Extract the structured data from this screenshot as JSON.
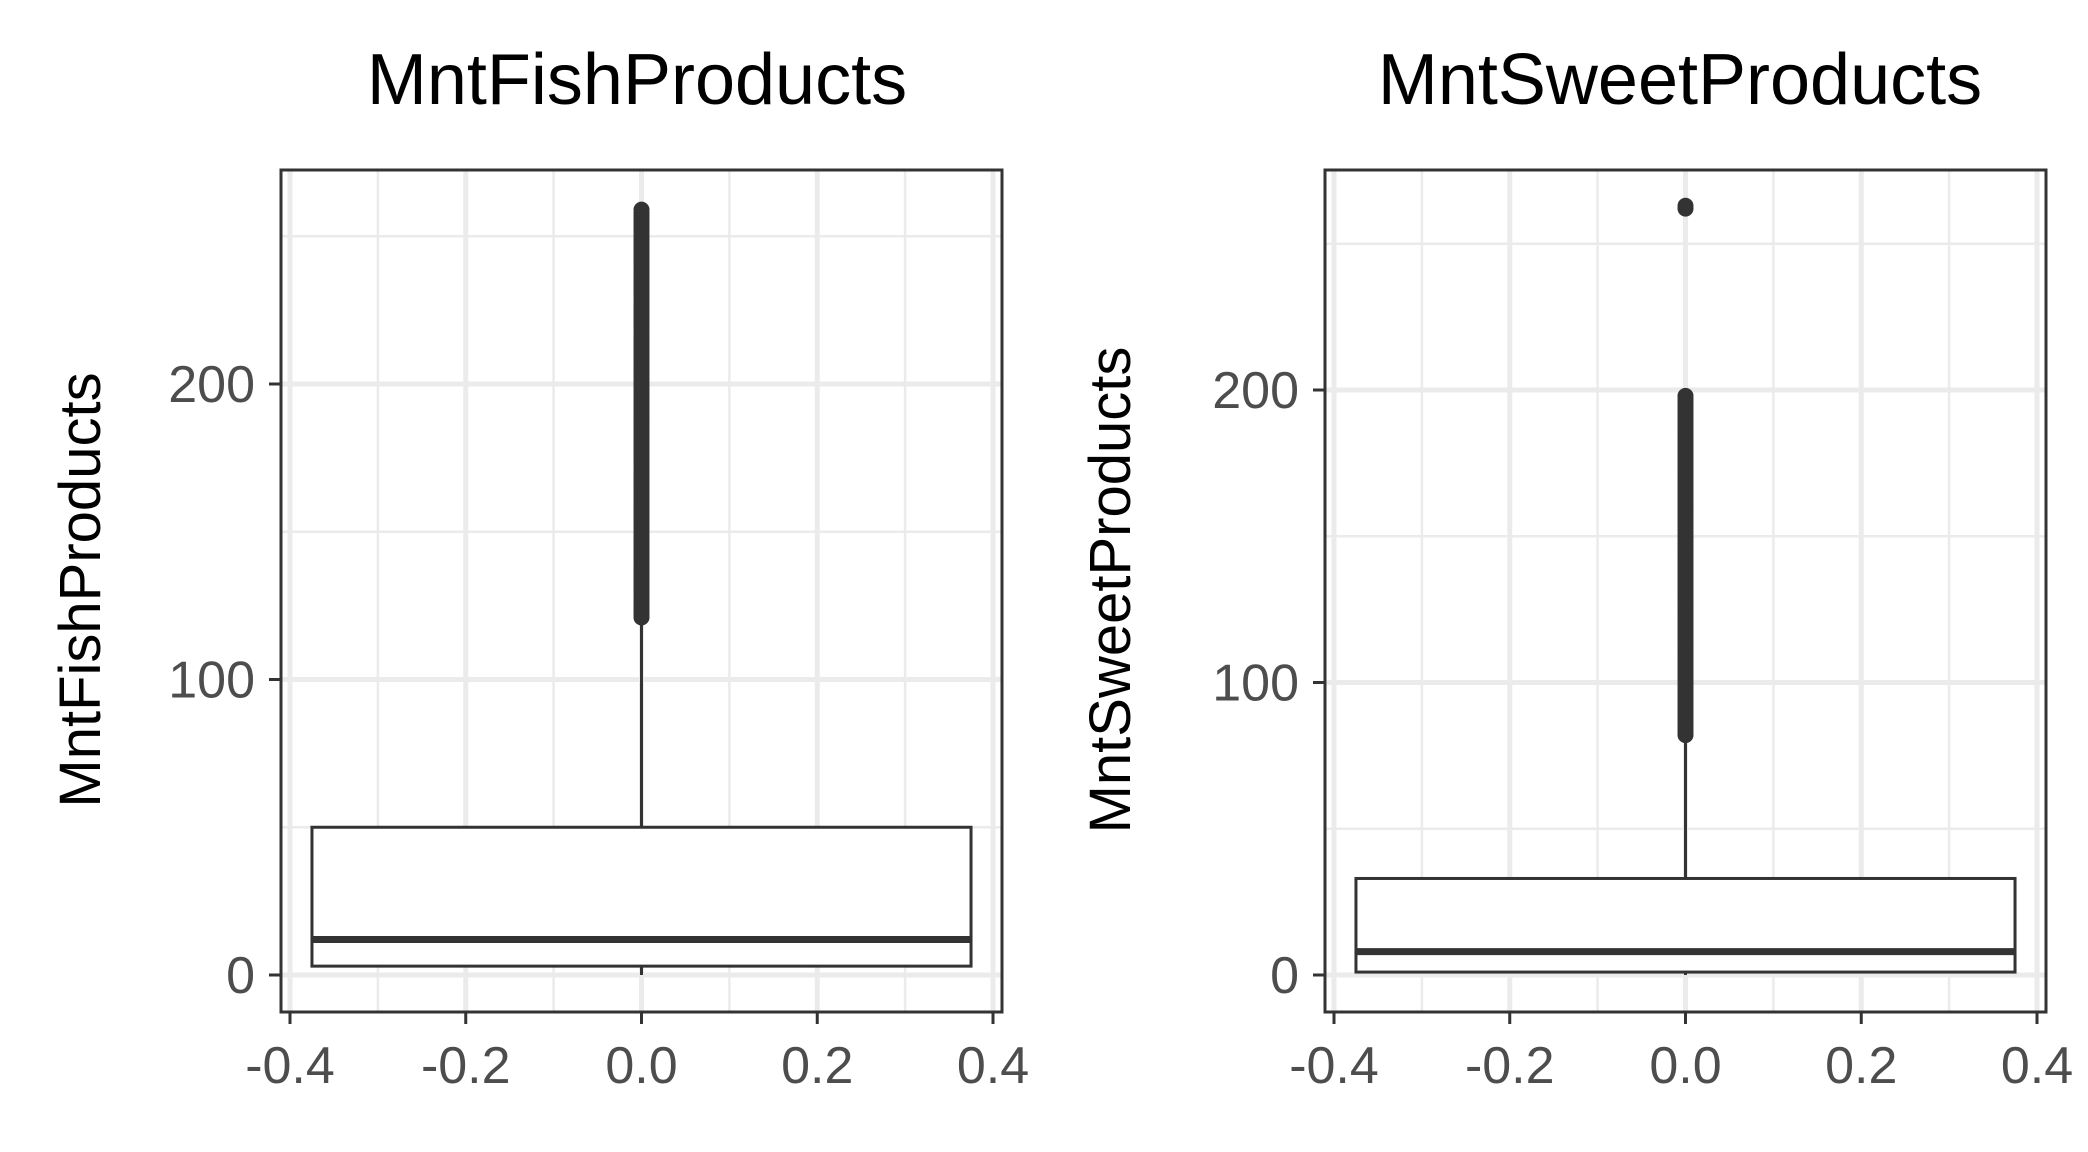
{
  "chart_data": [
    {
      "type": "box",
      "title": "MntFishProducts",
      "xlabel": "",
      "ylabel": "MntFishProducts",
      "xlim": [
        -0.4,
        0.4
      ],
      "ylim": [
        0,
        260
      ],
      "x_ticks": [
        -0.4,
        -0.2,
        0.0,
        0.2,
        0.4
      ],
      "x_tick_labels": [
        "-0.4",
        "-0.2",
        "0.0",
        "0.2",
        "0.4"
      ],
      "y_ticks": [
        0,
        100,
        200
      ],
      "y_tick_labels": [
        "0",
        "100",
        "200"
      ],
      "grid": true,
      "box": {
        "x": 0,
        "width": 0.75,
        "q1": 3,
        "median": 12,
        "q3": 50,
        "whisker_low": 0,
        "whisker_high": 120,
        "outlier_range": [
          121,
          259
        ]
      }
    },
    {
      "type": "box",
      "title": "MntSweetProducts",
      "xlabel": "",
      "ylabel": "MntSweetProducts",
      "xlim": [
        -0.4,
        0.4
      ],
      "ylim": [
        0,
        263
      ],
      "x_ticks": [
        -0.4,
        -0.2,
        0.0,
        0.2,
        0.4
      ],
      "x_tick_labels": [
        "-0.4",
        "-0.2",
        "0.0",
        "0.2",
        "0.4"
      ],
      "y_ticks": [
        0,
        100,
        200
      ],
      "y_tick_labels": [
        "0",
        "100",
        "200"
      ],
      "grid": true,
      "box": {
        "x": 0,
        "width": 0.75,
        "q1": 1,
        "median": 8,
        "q3": 33,
        "whisker_low": 0,
        "whisker_high": 81,
        "outlier_range": [
          82,
          198
        ],
        "extra_outliers": [
          262,
          263
        ]
      }
    }
  ]
}
